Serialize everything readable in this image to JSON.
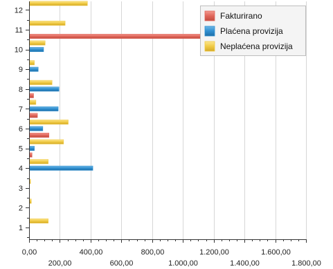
{
  "chart_data": {
    "type": "bar",
    "orientation": "horizontal",
    "categories": [
      "1",
      "2",
      "3",
      "4",
      "5",
      "6",
      "7",
      "8",
      "9",
      "10",
      "11",
      "12"
    ],
    "series": [
      {
        "name": "Fakturirano",
        "color": "#e0665a",
        "values": [
          0,
          0,
          0,
          0,
          15,
          125,
          50,
          25,
          0,
          0,
          1150,
          0
        ]
      },
      {
        "name": "Plaćena provizija",
        "color": "#2f8fd0",
        "values": [
          0,
          0,
          0,
          410,
          30,
          85,
          185,
          190,
          55,
          90,
          0,
          0
        ]
      },
      {
        "name": "Neplaćena provizija",
        "color": "#f0ca44",
        "values": [
          120,
          10,
          5,
          120,
          220,
          250,
          40,
          145,
          30,
          100,
          230,
          375
        ]
      }
    ],
    "x_ticks": [
      0,
      200,
      400,
      600,
      800,
      1000,
      1200,
      1400,
      1600,
      1800
    ],
    "x_tick_labels": [
      "0,00",
      "200,00",
      "400,00",
      "600,00",
      "800,00",
      "1.000,00",
      "1.200,00",
      "1.400,00",
      "1.600,00",
      "1.800,00"
    ],
    "xlim": [
      0,
      1800
    ],
    "grid": true,
    "legend_position": "top-right"
  }
}
